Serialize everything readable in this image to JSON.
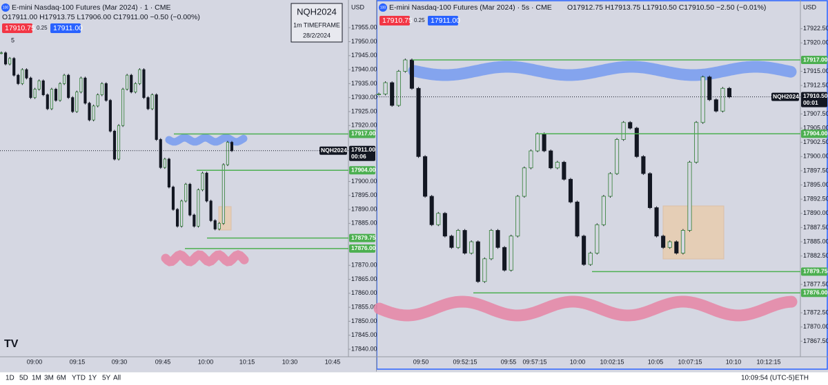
{
  "left": {
    "title": "E-mini Nasdaq-100 Futures (Mar 2024) · 1 · CME",
    "ohlc": "O17911.00 H17913.75 L17906.00 C17911.00 −0.50 (−0.00%)",
    "bid": "17910.75",
    "spread": "0.25",
    "ask": "17911.00",
    "indicator": "5",
    "currency": "USD",
    "badge": "100",
    "symbol_tag": "NQH2024",
    "price": {
      "value": 17911,
      "label": "17911.00"
    },
    "countdown": "00:06",
    "ylim": [
      17837.3,
      17964.9
    ],
    "yticks": [
      {
        "value": 17955,
        "label": "17955.00"
      },
      {
        "value": 17950,
        "label": "17950.00"
      },
      {
        "value": 17945,
        "label": "17945.00"
      },
      {
        "value": 17940,
        "label": "17940.00"
      },
      {
        "value": 17935,
        "label": "17935.00"
      },
      {
        "value": 17930,
        "label": "17930.00"
      },
      {
        "value": 17925,
        "label": "17925.00"
      },
      {
        "value": 17920,
        "label": "17920.00"
      },
      {
        "value": 17900,
        "label": "17900.00"
      },
      {
        "value": 17895,
        "label": "17895.00"
      },
      {
        "value": 17890,
        "label": "17890.00"
      },
      {
        "value": 17885,
        "label": "17885.00"
      },
      {
        "value": 17870,
        "label": "17870.00"
      },
      {
        "value": 17865,
        "label": "17865.00"
      },
      {
        "value": 17860,
        "label": "17860.00"
      },
      {
        "value": 17855,
        "label": "17855.00"
      },
      {
        "value": 17850,
        "label": "17850.00"
      },
      {
        "value": 17845,
        "label": "17845.00"
      },
      {
        "value": 17840,
        "label": "17840.00"
      }
    ],
    "times": [
      "09:00",
      "09:15",
      "09:30",
      "09:45",
      "10:00",
      "10:15",
      "10:30",
      "10:45"
    ],
    "closes": [
      17946,
      17942,
      17944,
      17938,
      17935,
      17940,
      17937,
      17930,
      17933,
      17936,
      17931,
      17926,
      17933,
      17929,
      17935,
      17938,
      17930,
      17925,
      17932,
      17937,
      17928,
      17922,
      17927,
      17931,
      17935,
      17929,
      17918,
      17908,
      17920,
      17933,
      17938,
      17932,
      17935,
      17940,
      17930,
      17926,
      17931,
      17915,
      17905,
      17908,
      17898,
      17890,
      17884,
      17893,
      17899,
      17888,
      17884,
      17897,
      17903,
      17893,
      17886,
      17883,
      17885,
      17906,
      17914,
      17911
    ]
  },
  "right": {
    "title": "E-mini Nasdaq-100 Futures (Mar 2024) · 5s · CME",
    "ohlc": "O17912.75 H17913.75 L17910.50 C17910.50 −2.50 (−0.01%)",
    "bid": "17910.75",
    "spread": "0.25",
    "ask": "17911.00",
    "currency": "USD",
    "badge": "100",
    "symbol_tag": "NQH2024",
    "price": {
      "value": 17910.5,
      "label": "17910.50"
    },
    "countdown": "00:01",
    "ylim": [
      17864.76,
      17927.55
    ],
    "yticks": [
      {
        "value": 17922.5,
        "label": "17922.50"
      },
      {
        "value": 17920,
        "label": "17920.00"
      },
      {
        "value": 17915,
        "label": "17915.00"
      },
      {
        "value": 17912.5,
        "label": "17912.50"
      },
      {
        "value": 17907.5,
        "label": "17907.50"
      },
      {
        "value": 17905,
        "label": "17905.00"
      },
      {
        "value": 17902.5,
        "label": "17902.50"
      },
      {
        "value": 17900,
        "label": "17900.00"
      },
      {
        "value": 17897.5,
        "label": "17897.50"
      },
      {
        "value": 17895,
        "label": "17895.00"
      },
      {
        "value": 17892.5,
        "label": "17892.50"
      },
      {
        "value": 17890,
        "label": "17890.00"
      },
      {
        "value": 17887.5,
        "label": "17887.50"
      },
      {
        "value": 17885,
        "label": "17885.00"
      },
      {
        "value": 17882.5,
        "label": "17882.50"
      },
      {
        "value": 17877.5,
        "label": "17877.50"
      },
      {
        "value": 17872.5,
        "label": "17872.50"
      },
      {
        "value": 17870,
        "label": "17870.00"
      },
      {
        "value": 17867.5,
        "label": "17867.50"
      }
    ],
    "times": [
      "09:50",
      "09:52:15",
      "09:55",
      "09:57:15",
      "10:00",
      "10:02:15",
      "10:05",
      "10:07:15",
      "10:10",
      "10:12:15"
    ],
    "closes": [
      17911,
      17913,
      17909,
      17915,
      17917,
      17912,
      17900,
      17893,
      17888,
      17890,
      17886,
      17884,
      17887,
      17883,
      17885,
      17878,
      17882,
      17887,
      17884,
      17880,
      17886,
      17893,
      17898,
      17901,
      17904,
      17901,
      17898,
      17899,
      17896,
      17892,
      17886,
      17881,
      17883,
      17888,
      17893,
      17897,
      17903,
      17906,
      17905,
      17900,
      17897,
      17891,
      17886,
      17884,
      17885,
      17883,
      17887,
      17899,
      17906,
      17914,
      17910,
      17908,
      17912,
      17910.5
    ]
  },
  "levels": [
    {
      "value": 17917,
      "label": "17917.00"
    },
    {
      "value": 17904,
      "label": "17904.00"
    },
    {
      "value": 17879.75,
      "label": "17879.75"
    },
    {
      "value": 17876,
      "label": "17876.00"
    }
  ],
  "note": {
    "symbol": "NQH2024",
    "timeframe": "1m TIMEFRAME",
    "date": "28/2/2024"
  },
  "toolbar": {
    "ranges": [
      "1D",
      "5D",
      "1M",
      "3M",
      "6M",
      "YTD",
      "1Y",
      "5Y",
      "All"
    ],
    "clock": "10:09:54 (UTC-5)",
    "session": "ETH"
  }
}
